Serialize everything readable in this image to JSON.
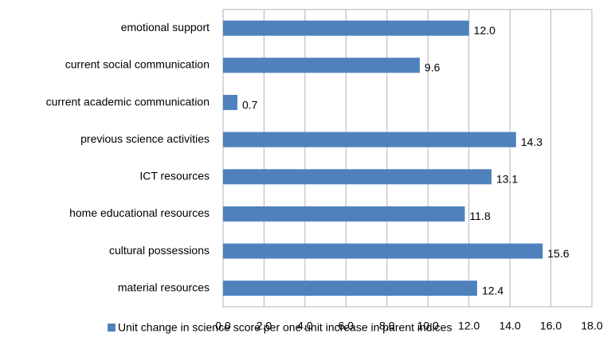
{
  "chart_data": {
    "type": "bar",
    "orientation": "horizontal",
    "categories": [
      "emotional support",
      "current social communication",
      "current academic communication",
      "previous science activities",
      "ICT resources",
      "home educational resources",
      "cultural possessions",
      "material resources"
    ],
    "series": [
      {
        "name": "Unit change in science score per one unit increase in parent indices",
        "color": "#4f81bd",
        "values": [
          12.0,
          9.6,
          0.7,
          14.3,
          13.1,
          11.8,
          15.6,
          12.4
        ],
        "value_labels": [
          "12.0",
          "9.6",
          "0.7",
          "14.3",
          "13.1",
          "11.8",
          "15.6",
          "12.4"
        ]
      }
    ],
    "xlim": [
      0,
      18
    ],
    "xticks": [
      {
        "value": 0,
        "label": "0.0"
      },
      {
        "value": 2,
        "label": "2.0"
      },
      {
        "value": 4,
        "label": "4.0"
      },
      {
        "value": 6,
        "label": "6.0"
      },
      {
        "value": 8,
        "label": "8.0"
      },
      {
        "value": 10,
        "label": "10.0"
      },
      {
        "value": 12,
        "label": "12.0"
      },
      {
        "value": 14,
        "label": "14.0"
      },
      {
        "value": 16,
        "label": "16.0"
      },
      {
        "value": 18,
        "label": "18.0"
      }
    ],
    "grid": true,
    "legend": "bottom"
  }
}
